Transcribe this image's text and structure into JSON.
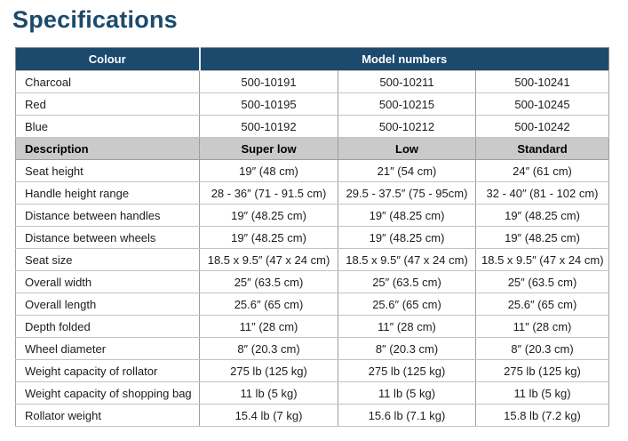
{
  "page": {
    "title": "Specifications"
  },
  "colors": {
    "title": "#1b4a6d",
    "header_bg": "#1b4a6d",
    "header_text": "#ffffff",
    "description_row_bg": "#cacaca",
    "border_outer": "#8d8d8d",
    "border_inner": "#c2c2c2"
  },
  "table": {
    "colour_header": "Colour",
    "model_numbers_header": "Model numbers",
    "colour_rows": [
      {
        "label": "Charcoal",
        "values": [
          "500-10191",
          "500-10211",
          "500-10241"
        ]
      },
      {
        "label": "Red",
        "values": [
          "500-10195",
          "500-10215",
          "500-10245"
        ]
      },
      {
        "label": "Blue",
        "values": [
          "500-10192",
          "500-10212",
          "500-10242"
        ]
      }
    ],
    "description_header": {
      "label": "Description",
      "columns": [
        "Super low",
        "Low",
        "Standard"
      ]
    },
    "spec_rows": [
      {
        "label": "Seat height",
        "values": [
          "19″ (48 cm)",
          "21″ (54 cm)",
          "24″ (61 cm)"
        ]
      },
      {
        "label": "Handle height range",
        "values": [
          "28 - 36″ (71 - 91.5 cm)",
          "29.5 - 37.5″ (75 - 95cm)",
          "32 - 40″ (81 - 102 cm)"
        ]
      },
      {
        "label": "Distance between handles",
        "values": [
          "19″ (48.25 cm)",
          "19″ (48.25 cm)",
          "19″ (48.25 cm)"
        ]
      },
      {
        "label": "Distance between wheels",
        "values": [
          "19″ (48.25 cm)",
          "19″ (48.25 cm)",
          "19″ (48.25 cm)"
        ]
      },
      {
        "label": "Seat size",
        "values": [
          "18.5 x 9.5″ (47 x 24 cm)",
          "18.5 x 9.5″ (47 x 24 cm)",
          "18.5 x 9.5″ (47 x 24 cm)"
        ]
      },
      {
        "label": "Overall width",
        "values": [
          "25″ (63.5 cm)",
          "25″ (63.5 cm)",
          "25″ (63.5 cm)"
        ]
      },
      {
        "label": "Overall length",
        "values": [
          "25.6″ (65 cm)",
          "25.6″ (65 cm)",
          "25.6″ (65 cm)"
        ]
      },
      {
        "label": "Depth folded",
        "values": [
          "11″ (28 cm)",
          "11″ (28 cm)",
          "11″ (28 cm)"
        ]
      },
      {
        "label": "Wheel diameter",
        "values": [
          "8″ (20.3 cm)",
          "8″ (20.3 cm)",
          "8″ (20.3 cm)"
        ]
      },
      {
        "label": "Weight capacity of rollator",
        "values": [
          "275 lb (125 kg)",
          "275 lb (125 kg)",
          "275 lb (125 kg)"
        ]
      },
      {
        "label": "Weight capacity of shopping bag",
        "values": [
          "11 lb (5 kg)",
          "11 lb (5 kg)",
          "11 lb (5 kg)"
        ]
      },
      {
        "label": "Rollator weight",
        "values": [
          "15.4 lb (7 kg)",
          "15.6 lb (7.1 kg)",
          "15.8 lb (7.2 kg)"
        ]
      }
    ]
  }
}
